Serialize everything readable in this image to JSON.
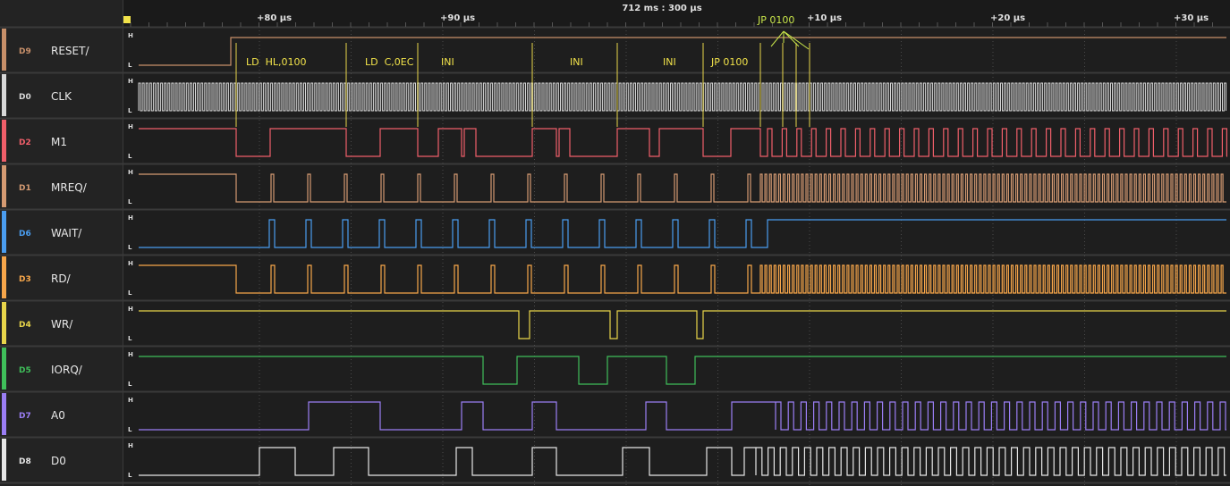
{
  "ruler": {
    "center_label": "712 ms : 300 µs",
    "ticks": [
      "+80 µs",
      "+90 µs",
      "+10 µs",
      "+20 µs",
      "+30 µs"
    ]
  },
  "level_labels": {
    "high": "H",
    "low": "L"
  },
  "channels": [
    {
      "id": "D9",
      "name": "RESET/",
      "color": "#c8906a"
    },
    {
      "id": "D0",
      "name": "CLK",
      "color": "#d8d8d8"
    },
    {
      "id": "D2",
      "name": "M1",
      "color": "#f05f6a"
    },
    {
      "id": "D1",
      "name": "MREQ/",
      "color": "#d49a72"
    },
    {
      "id": "D6",
      "name": "WAIT/",
      "color": "#4a9df0"
    },
    {
      "id": "D3",
      "name": "RD/",
      "color": "#f7a64a"
    },
    {
      "id": "D4",
      "name": "WR/",
      "color": "#e8d54a"
    },
    {
      "id": "D5",
      "name": "IORQ/",
      "color": "#3fbf5a"
    },
    {
      "id": "D7",
      "name": "A0",
      "color": "#9b7ef5"
    },
    {
      "id": "D8",
      "name": "D0",
      "color": "#e6e6e6"
    }
  ],
  "annotations": [
    "LD  HL,0100",
    "LD  C,0EC",
    "INI",
    "INI",
    "INI",
    "JP 0100"
  ],
  "jump_label": "JP 0100"
}
